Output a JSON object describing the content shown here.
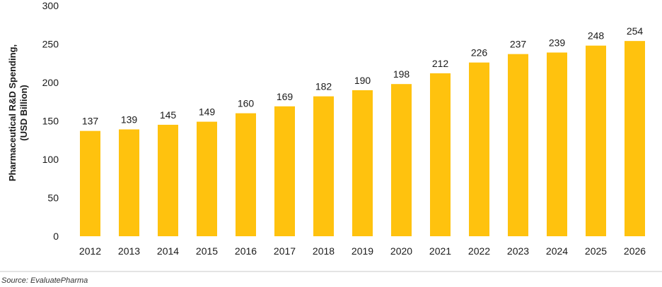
{
  "chart_data": {
    "type": "bar",
    "title": "",
    "xlabel": "",
    "ylabel": [
      "Pharmaceutical R&D Spending,",
      "(USD Billion)"
    ],
    "categories": [
      "2012",
      "2013",
      "2014",
      "2015",
      "2016",
      "2017",
      "2018",
      "2019",
      "2020",
      "2021",
      "2022",
      "2023",
      "2024",
      "2025",
      "2026"
    ],
    "values": [
      137,
      139,
      145,
      149,
      160,
      169,
      182,
      190,
      198,
      212,
      226,
      237,
      239,
      248,
      254
    ],
    "ylim": [
      0,
      300
    ],
    "yticks": [
      0,
      50,
      100,
      150,
      200,
      250,
      300
    ],
    "grid": false,
    "bar_color": "#FFC20E",
    "source": "Source: EvaluatePharma"
  }
}
